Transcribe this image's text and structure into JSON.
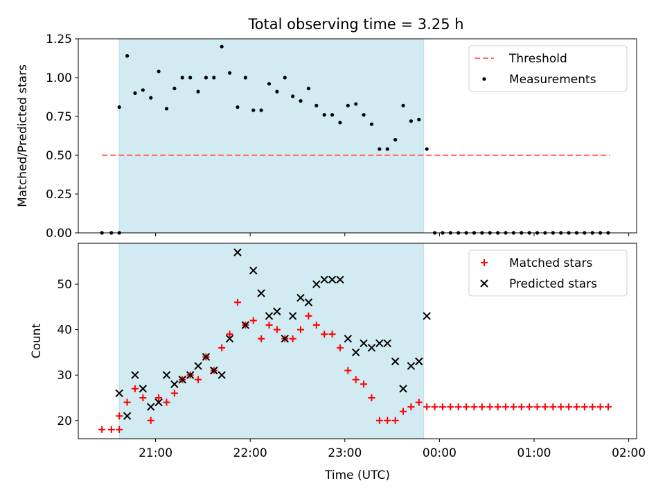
{
  "title": "Total observing time = 3.25 h",
  "chart_data": [
    {
      "type": "scatter",
      "ylabel": "Matched/Predicted stars",
      "ylim": [
        0,
        1.25
      ],
      "yticks": [
        0,
        0.25,
        0.5,
        0.75,
        1.0,
        1.25
      ],
      "ytick_labels": [
        "0.00",
        "0.25",
        "0.50",
        "0.75",
        "1.00",
        "1.25"
      ],
      "xlim": [
        "20:11",
        "02:05"
      ],
      "highlight_span": [
        "20:37",
        "23:50"
      ],
      "highlight_color": "#add8e6",
      "legend": {
        "position": "top-right",
        "entries": [
          "Threshold",
          "Measurements"
        ]
      },
      "threshold": {
        "name": "Threshold",
        "value": 0.5,
        "x": [
          "20:26",
          "01:48"
        ],
        "color": "#ff7070",
        "style": "dashed"
      },
      "series": [
        {
          "name": "Measurements",
          "color": "#000000",
          "marker": "dot",
          "points": [
            [
              "20:26",
              0
            ],
            [
              "20:32",
              0
            ],
            [
              "20:37",
              0
            ],
            [
              "20:37",
              0.81
            ],
            [
              "20:42",
              1.14
            ],
            [
              "20:47",
              0.9
            ],
            [
              "20:52",
              0.92
            ],
            [
              "20:57",
              0.87
            ],
            [
              "21:02",
              1.04
            ],
            [
              "21:07",
              0.8
            ],
            [
              "21:12",
              0.93
            ],
            [
              "21:17",
              1.0
            ],
            [
              "21:22",
              1.0
            ],
            [
              "21:27",
              0.91
            ],
            [
              "21:32",
              1.0
            ],
            [
              "21:37",
              1.0
            ],
            [
              "21:42",
              1.2
            ],
            [
              "21:47",
              1.03
            ],
            [
              "21:52",
              0.81
            ],
            [
              "21:57",
              1.0
            ],
            [
              "22:02",
              0.79
            ],
            [
              "22:07",
              0.79
            ],
            [
              "22:12",
              0.96
            ],
            [
              "22:17",
              0.91
            ],
            [
              "22:22",
              1.0
            ],
            [
              "22:27",
              0.88
            ],
            [
              "22:32",
              0.85
            ],
            [
              "22:37",
              0.93
            ],
            [
              "22:42",
              0.82
            ],
            [
              "22:47",
              0.76
            ],
            [
              "22:52",
              0.76
            ],
            [
              "22:57",
              0.71
            ],
            [
              "23:02",
              0.82
            ],
            [
              "23:07",
              0.83
            ],
            [
              "23:12",
              0.76
            ],
            [
              "23:17",
              0.7
            ],
            [
              "23:22",
              0.54
            ],
            [
              "23:27",
              0.54
            ],
            [
              "23:32",
              0.6
            ],
            [
              "23:37",
              0.82
            ],
            [
              "23:42",
              0.72
            ],
            [
              "23:47",
              0.73
            ],
            [
              "23:52",
              0.54
            ],
            [
              "23:57",
              0
            ],
            [
              "00:02",
              0
            ],
            [
              "00:07",
              0
            ],
            [
              "00:12",
              0
            ],
            [
              "00:17",
              0
            ],
            [
              "00:22",
              0
            ],
            [
              "00:27",
              0
            ],
            [
              "00:32",
              0
            ],
            [
              "00:37",
              0
            ],
            [
              "00:42",
              0
            ],
            [
              "00:47",
              0
            ],
            [
              "00:52",
              0
            ],
            [
              "00:57",
              0
            ],
            [
              "01:02",
              0
            ],
            [
              "01:07",
              0
            ],
            [
              "01:12",
              0
            ],
            [
              "01:17",
              0
            ],
            [
              "01:22",
              0
            ],
            [
              "01:27",
              0
            ],
            [
              "01:32",
              0
            ],
            [
              "01:37",
              0
            ],
            [
              "01:42",
              0
            ],
            [
              "01:47",
              0
            ]
          ]
        }
      ]
    },
    {
      "type": "scatter",
      "ylabel": "Count",
      "xlabel": "Time (UTC)",
      "ylim": [
        16,
        59
      ],
      "yticks": [
        20,
        30,
        40,
        50
      ],
      "ytick_labels": [
        "20",
        "30",
        "40",
        "50"
      ],
      "xlim": [
        "20:11",
        "02:05"
      ],
      "xticks": [
        "21:00",
        "22:00",
        "23:00",
        "00:00",
        "01:00",
        "02:00"
      ],
      "xtick_labels": [
        "21:00",
        "22:00",
        "23:00",
        "00:00",
        "01:00",
        "02:00"
      ],
      "highlight_span": [
        "20:37",
        "23:50"
      ],
      "highlight_color": "#add8e6",
      "legend": {
        "position": "top-right",
        "entries": [
          "Matched stars",
          "Predicted stars"
        ]
      },
      "series": [
        {
          "name": "Matched stars",
          "color": "#ff0000",
          "marker": "plus",
          "points": [
            [
              "20:26",
              18
            ],
            [
              "20:32",
              18
            ],
            [
              "20:37",
              18
            ],
            [
              "20:37",
              21
            ],
            [
              "20:42",
              24
            ],
            [
              "20:47",
              27
            ],
            [
              "20:52",
              25
            ],
            [
              "20:57",
              20
            ],
            [
              "21:02",
              25
            ],
            [
              "21:07",
              24
            ],
            [
              "21:12",
              26
            ],
            [
              "21:17",
              29
            ],
            [
              "21:22",
              30
            ],
            [
              "21:27",
              29
            ],
            [
              "21:32",
              34
            ],
            [
              "21:37",
              31
            ],
            [
              "21:42",
              36
            ],
            [
              "21:47",
              39
            ],
            [
              "21:52",
              46
            ],
            [
              "21:57",
              41
            ],
            [
              "22:02",
              42
            ],
            [
              "22:07",
              38
            ],
            [
              "22:12",
              41
            ],
            [
              "22:17",
              40
            ],
            [
              "22:22",
              38
            ],
            [
              "22:27",
              38
            ],
            [
              "22:32",
              40
            ],
            [
              "22:37",
              43
            ],
            [
              "22:42",
              41
            ],
            [
              "22:47",
              39
            ],
            [
              "22:52",
              39
            ],
            [
              "22:57",
              36
            ],
            [
              "23:02",
              31
            ],
            [
              "23:07",
              29
            ],
            [
              "23:12",
              28
            ],
            [
              "23:17",
              25
            ],
            [
              "23:22",
              20
            ],
            [
              "23:27",
              20
            ],
            [
              "23:32",
              20
            ],
            [
              "23:37",
              22
            ],
            [
              "23:42",
              23
            ],
            [
              "23:47",
              24
            ],
            [
              "23:52",
              23
            ],
            [
              "23:57",
              23
            ],
            [
              "00:02",
              23
            ],
            [
              "00:07",
              23
            ],
            [
              "00:12",
              23
            ],
            [
              "00:17",
              23
            ],
            [
              "00:22",
              23
            ],
            [
              "00:27",
              23
            ],
            [
              "00:32",
              23
            ],
            [
              "00:37",
              23
            ],
            [
              "00:42",
              23
            ],
            [
              "00:47",
              23
            ],
            [
              "00:52",
              23
            ],
            [
              "00:57",
              23
            ],
            [
              "01:02",
              23
            ],
            [
              "01:07",
              23
            ],
            [
              "01:12",
              23
            ],
            [
              "01:17",
              23
            ],
            [
              "01:22",
              23
            ],
            [
              "01:27",
              23
            ],
            [
              "01:32",
              23
            ],
            [
              "01:37",
              23
            ],
            [
              "01:42",
              23
            ],
            [
              "01:47",
              23
            ]
          ]
        },
        {
          "name": "Predicted stars",
          "color": "#000000",
          "marker": "x",
          "points": [
            [
              "20:37",
              26
            ],
            [
              "20:42",
              21
            ],
            [
              "20:47",
              30
            ],
            [
              "20:52",
              27
            ],
            [
              "20:57",
              23
            ],
            [
              "21:02",
              24
            ],
            [
              "21:07",
              30
            ],
            [
              "21:12",
              28
            ],
            [
              "21:17",
              29
            ],
            [
              "21:22",
              30
            ],
            [
              "21:27",
              32
            ],
            [
              "21:32",
              34
            ],
            [
              "21:37",
              31
            ],
            [
              "21:42",
              30
            ],
            [
              "21:47",
              38
            ],
            [
              "21:52",
              57
            ],
            [
              "21:57",
              41
            ],
            [
              "22:02",
              53
            ],
            [
              "22:07",
              48
            ],
            [
              "22:12",
              43
            ],
            [
              "22:17",
              44
            ],
            [
              "22:22",
              38
            ],
            [
              "22:27",
              43
            ],
            [
              "22:32",
              47
            ],
            [
              "22:37",
              46
            ],
            [
              "22:42",
              50
            ],
            [
              "22:47",
              51
            ],
            [
              "22:52",
              51
            ],
            [
              "22:57",
              51
            ],
            [
              "23:02",
              38
            ],
            [
              "23:07",
              35
            ],
            [
              "23:12",
              37
            ],
            [
              "23:17",
              36
            ],
            [
              "23:22",
              37
            ],
            [
              "23:27",
              37
            ],
            [
              "23:32",
              33
            ],
            [
              "23:37",
              27
            ],
            [
              "23:42",
              32
            ],
            [
              "23:47",
              33
            ],
            [
              "23:52",
              43
            ]
          ]
        }
      ]
    }
  ]
}
